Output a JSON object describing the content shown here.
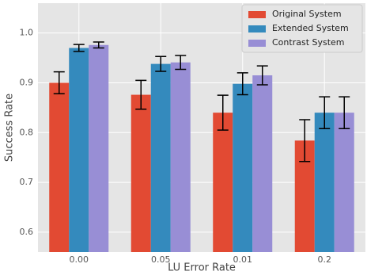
{
  "chart_data": {
    "type": "bar",
    "x_label": "LU Error Rate",
    "y_label": "Success Rate",
    "categories": [
      "0.00",
      "0.05",
      "0.01",
      "0.2"
    ],
    "series": [
      {
        "name": "Original System",
        "color": "#E24A33",
        "values": [
          0.9,
          0.876,
          0.84,
          0.784
        ],
        "errors": [
          0.022,
          0.029,
          0.035,
          0.042
        ]
      },
      {
        "name": "Extended System",
        "color": "#348ABD",
        "values": [
          0.97,
          0.938,
          0.898,
          0.84
        ],
        "errors": [
          0.007,
          0.015,
          0.022,
          0.032
        ]
      },
      {
        "name": "Contrast System",
        "color": "#988ED5",
        "values": [
          0.976,
          0.941,
          0.915,
          0.84
        ],
        "errors": [
          0.006,
          0.014,
          0.019,
          0.032
        ]
      }
    ],
    "ylim": [
      0.56,
      1.06
    ],
    "yticks": [
      0.6,
      0.7,
      0.8,
      0.9,
      {
        "value": 1.0,
        "label": "1.0"
      }
    ],
    "grid": true,
    "legend": "upper right"
  }
}
